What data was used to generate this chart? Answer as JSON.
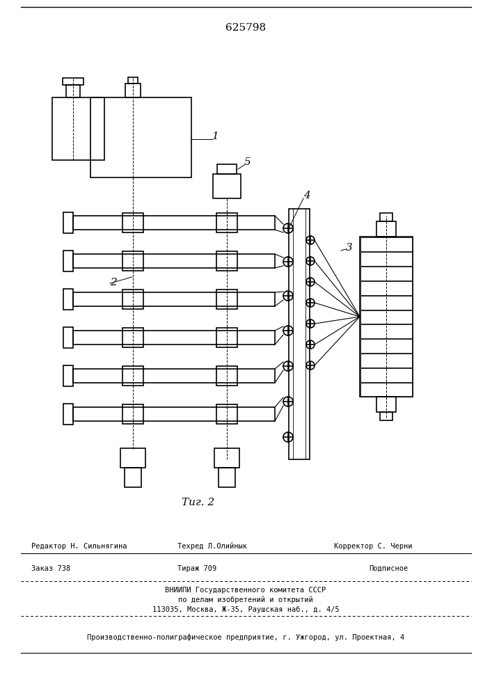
{
  "patent_number": "625798",
  "fig_label": "Τиг. 2",
  "background_color": "#ffffff",
  "line_color": "#000000",
  "editor_line1": "Редактор Н. Сильнягина",
  "editor_line2": "Техред Л.Олийнык",
  "editor_line3": "Корректор С. Черни",
  "order_text": "Заказ 738",
  "tirazh_text": "Тираж 709",
  "podpisnoe_text": "Подписное",
  "vniiipi_line1": "ВНИИПИ Государственного комитета СССР",
  "vniiipi_line2": "по делам изобретений и открытий",
  "vniiipi_line3": "113035, Москва, Ж-35, Раушская наб., д. 4/5",
  "production_line": "Производственно-полиграфическое предприятие, г. Ужгород, ул. Проектная, 4"
}
